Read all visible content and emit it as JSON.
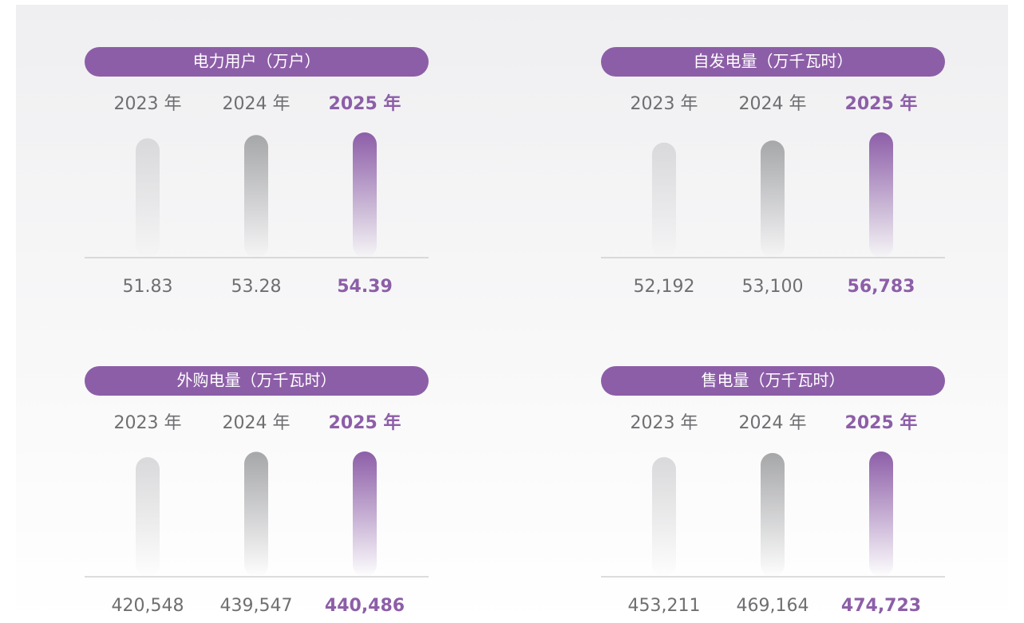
{
  "chart_data": [
    {
      "type": "bar",
      "title": "电力用户（万户）",
      "categories": [
        "2023 年",
        "2024 年",
        "2025 年"
      ],
      "values": [
        51.83,
        53.28,
        54.39
      ],
      "colors": [
        "#d9d9db",
        "#a6a7a9",
        "#8d5ea8"
      ]
    },
    {
      "type": "bar",
      "title": "自发电量（万千瓦时）",
      "categories": [
        "2023 年",
        "2024 年",
        "2025 年"
      ],
      "values": [
        52192,
        53100,
        56783
      ],
      "value_labels": [
        "52,192",
        "53,100",
        "56,783"
      ],
      "colors": [
        "#d9d9db",
        "#a6a7a9",
        "#8d5ea8"
      ]
    },
    {
      "type": "bar",
      "title": "外购电量（万千瓦时）",
      "categories": [
        "2023 年",
        "2024 年",
        "2025 年"
      ],
      "values": [
        420548,
        439547,
        440486
      ],
      "value_labels": [
        "420,548",
        "439,547",
        "440,486"
      ],
      "colors": [
        "#d9d9db",
        "#a6a7a9",
        "#8d5ea8"
      ]
    },
    {
      "type": "bar",
      "title": "售电量（万千瓦时）",
      "categories": [
        "2023 年",
        "2024 年",
        "2025 年"
      ],
      "values": [
        453211,
        469164,
        474723
      ],
      "value_labels": [
        "453,211",
        "469,164",
        "474,723"
      ],
      "colors": [
        "#d9d9db",
        "#a6a7a9",
        "#8d5ea8"
      ]
    }
  ]
}
